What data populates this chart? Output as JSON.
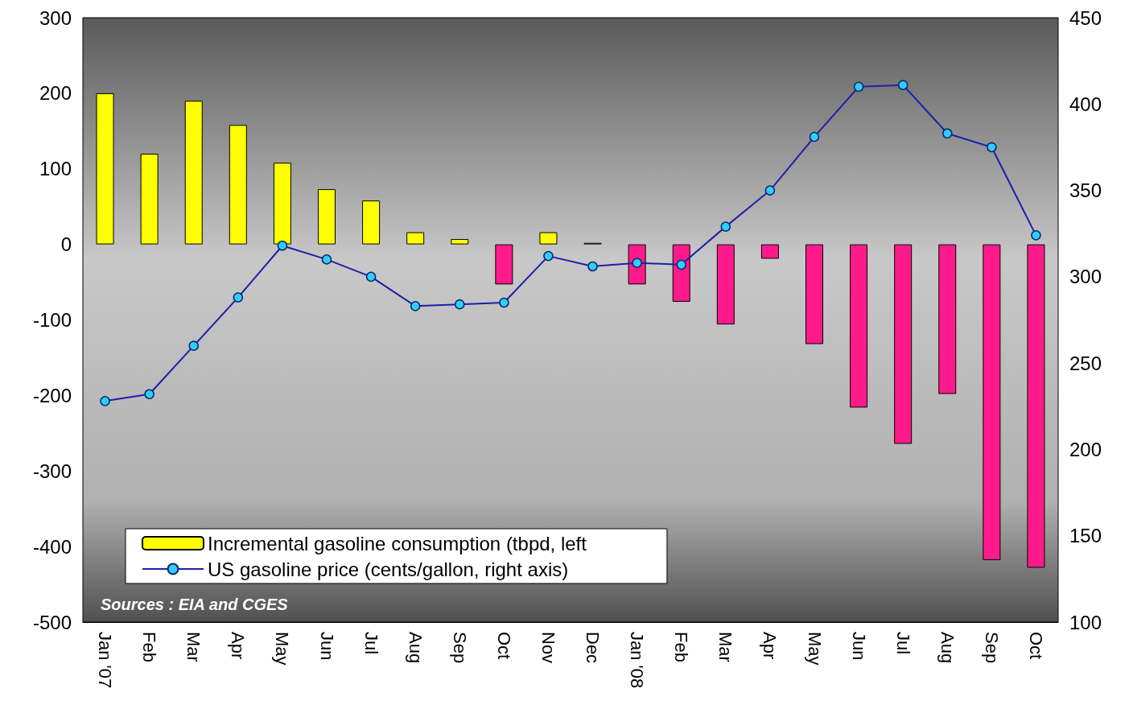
{
  "chart_data": {
    "type": "bar",
    "categories": [
      "Jan '07",
      "Feb",
      "Mar",
      "Apr",
      "May",
      "Jun",
      "Jul",
      "Aug",
      "Sep",
      "Oct",
      "Nov",
      "Dec",
      "Jan '08",
      "Feb",
      "Mar",
      "Apr",
      "May",
      "Jun",
      "Jul",
      "Aug",
      "Sep",
      "Oct"
    ],
    "series": [
      {
        "name": "Incremental gasoline consumption (tbpd, left",
        "color": "#ffff00",
        "colors": [
          "#ffff00",
          "#ffff00",
          "#ffff00",
          "#ffff00",
          "#ffff00",
          "#ffff00",
          "#ffff00",
          "#ffff00",
          "#ffff00",
          "#ff1a8c",
          "#ffff00",
          "#ffff00",
          "#ff1a8c",
          "#ff1a8c",
          "#ff1a8c",
          "#ff1a8c",
          "#ff1a8c",
          "#ff1a8c",
          "#ff1a8c",
          "#ff1a8c",
          "#ff1a8c",
          "#ff1a8c"
        ],
        "values": [
          200,
          120,
          190,
          158,
          108,
          73,
          58,
          16,
          7,
          -53,
          16,
          2,
          -53,
          -76,
          -106,
          -19,
          -132,
          -216,
          -264,
          -198,
          -418,
          -428
        ]
      },
      {
        "type": "line",
        "name": "US gasoline price (cents/gallon, right axis)",
        "color": "#1f1fa8",
        "axis": "y2",
        "marker": "circle",
        "values": [
          228,
          232,
          260,
          288,
          318,
          310,
          300,
          283,
          284,
          285,
          312,
          306,
          308,
          307,
          329,
          350,
          381,
          410,
          411,
          383,
          375,
          324
        ]
      }
    ],
    "ylim": [
      -500,
      300
    ],
    "yticks": [
      -500,
      -400,
      -300,
      -200,
      -100,
      0,
      100,
      200,
      300
    ],
    "y2lim": [
      100,
      450
    ],
    "y2ticks": [
      100,
      150,
      200,
      250,
      300,
      350,
      400,
      450
    ],
    "grid": false,
    "legend": "bottom left",
    "annotations": [
      "Sources : EIA and CGES"
    ]
  }
}
